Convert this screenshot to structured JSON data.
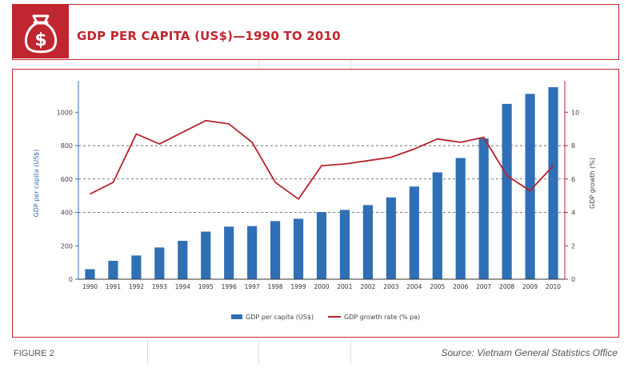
{
  "header": {
    "title": "GDP PER CAPITA (US$)—1990 TO 2010",
    "icon": "money-bag-icon",
    "accent_color": "#c0262f"
  },
  "footer": {
    "figure_label": "FIGURE 2",
    "source": "Source: Vietnam General Statistics Office"
  },
  "chart_data": {
    "type": "bar",
    "categories": [
      "1990",
      "1991",
      "1992",
      "1993",
      "1994",
      "1995",
      "1996",
      "1997",
      "1998",
      "1999",
      "2000",
      "2001",
      "2002",
      "2003",
      "2004",
      "2005",
      "2006",
      "2007",
      "2008",
      "2009",
      "2010"
    ],
    "series": [
      {
        "name": "GDP per capita (US$)",
        "type": "bar",
        "axis": "left",
        "color": "#2f6fb5",
        "values": [
          60,
          110,
          142,
          190,
          230,
          285,
          315,
          318,
          348,
          362,
          402,
          415,
          444,
          490,
          555,
          640,
          726,
          843,
          1050,
          1110,
          1150
        ]
      },
      {
        "name": "GDP growth rate (% pa)",
        "type": "line",
        "axis": "right",
        "color": "#b8232d",
        "values": [
          5.1,
          5.8,
          8.7,
          8.1,
          8.8,
          9.5,
          9.3,
          8.2,
          5.8,
          4.8,
          6.8,
          6.9,
          7.1,
          7.3,
          7.8,
          8.4,
          8.2,
          8.5,
          6.2,
          5.3,
          6.8
        ]
      }
    ],
    "ylabel_left": "GDP per capita (US$)",
    "ylabel_right": "GDP growth (%)",
    "ylim_left": [
      0,
      1150
    ],
    "ylim_right": [
      0,
      11.5
    ],
    "yticks_left": [
      0,
      200,
      400,
      600,
      800,
      1000
    ],
    "yticks_right": [
      0,
      2,
      4,
      6,
      8,
      10
    ],
    "grid": "dashed horizontal at 400, 600, 800",
    "legend_position": "bottom-center"
  }
}
